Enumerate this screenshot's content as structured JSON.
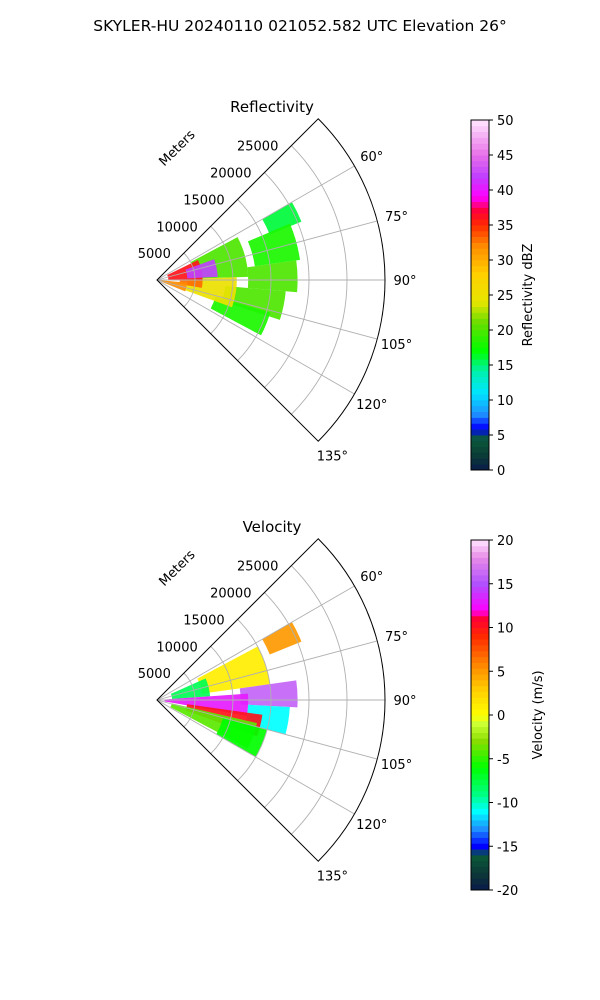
{
  "suptitle": "SKYLER-HU  20240110  021052.582 UTC Elevation 26°",
  "chart_data": [
    {
      "type": "heatmap",
      "subtype": "polar-sector radar PPI",
      "title": "Reflectivity",
      "radial_axis_label": "Meters",
      "radial_ticks": [
        "5000",
        "10000",
        "15000",
        "20000",
        "25000"
      ],
      "radial_range": [
        0,
        30000
      ],
      "azimuth_range_deg": [
        45,
        135
      ],
      "azimuth_ticks": [
        "60°",
        "75°",
        "90°",
        "105°",
        "120°",
        "135°"
      ],
      "grid": true,
      "colorbar": {
        "label": "Reflectivity dBZ",
        "range": [
          0,
          50
        ],
        "ticks": [
          "0",
          "5",
          "10",
          "15",
          "20",
          "25",
          "30",
          "35",
          "40",
          "45",
          "50"
        ]
      },
      "echo_regions": [
        {
          "az": [
            60,
            68
          ],
          "r": [
            16000,
            20500
          ],
          "value": 16
        },
        {
          "az": [
            67,
            82
          ],
          "r": [
            13000,
            19000
          ],
          "value": 18
        },
        {
          "az": [
            82,
            95
          ],
          "r": [
            12000,
            18500
          ],
          "value": 20
        },
        {
          "az": [
            95,
            108
          ],
          "r": [
            9000,
            17000
          ],
          "value": 20
        },
        {
          "az": [
            106,
            118
          ],
          "r": [
            8000,
            15500
          ],
          "value": 18
        },
        {
          "az": [
            62,
            88
          ],
          "r": [
            5000,
            12000
          ],
          "value": 20
        },
        {
          "az": [
            88,
            110
          ],
          "r": [
            4000,
            10500
          ],
          "value": 25
        },
        {
          "az": [
            64,
            90
          ],
          "r": [
            1500,
            6000
          ],
          "value": 36
        },
        {
          "az": [
            70,
            87
          ],
          "r": [
            4000,
            8000
          ],
          "value": 42
        },
        {
          "az": [
            90,
            100
          ],
          "r": [
            3000,
            6000
          ],
          "value": 33
        },
        {
          "az": [
            95,
            112
          ],
          "r": [
            500,
            4000
          ],
          "value": 32
        }
      ]
    },
    {
      "type": "heatmap",
      "subtype": "polar-sector radar PPI",
      "title": "Velocity",
      "radial_axis_label": "Meters",
      "radial_ticks": [
        "5000",
        "10000",
        "15000",
        "20000",
        "25000"
      ],
      "radial_range": [
        0,
        30000
      ],
      "azimuth_range_deg": [
        45,
        135
      ],
      "azimuth_ticks": [
        "60°",
        "75°",
        "90°",
        "105°",
        "120°",
        "135°"
      ],
      "grid": true,
      "colorbar": {
        "label": "Velocity (m/s)",
        "range": [
          -20,
          20
        ],
        "ticks": [
          "-20",
          "-15",
          "-10",
          "-5",
          "0",
          "5",
          "10",
          "15",
          "20"
        ]
      },
      "echo_regions": [
        {
          "az": [
            60,
            68
          ],
          "r": [
            16000,
            20500
          ],
          "value": 5
        },
        {
          "az": [
            62,
            82
          ],
          "r": [
            6000,
            15000
          ],
          "value": 1
        },
        {
          "az": [
            66,
            86
          ],
          "r": [
            2000,
            7000
          ],
          "value": -8
        },
        {
          "az": [
            82,
            93
          ],
          "r": [
            11000,
            18500
          ],
          "value": 16
        },
        {
          "az": [
            93,
            105
          ],
          "r": [
            12000,
            17500
          ],
          "value": -11
        },
        {
          "az": [
            86,
            100
          ],
          "r": [
            1000,
            12000
          ],
          "value": 13
        },
        {
          "az": [
            98,
            110
          ],
          "r": [
            4000,
            14000
          ],
          "value": 10
        },
        {
          "az": [
            103,
            118
          ],
          "r": [
            2000,
            13500
          ],
          "value": -4
        },
        {
          "az": [
            105,
            120
          ],
          "r": [
            9000,
            15000
          ],
          "value": -6
        }
      ]
    }
  ]
}
